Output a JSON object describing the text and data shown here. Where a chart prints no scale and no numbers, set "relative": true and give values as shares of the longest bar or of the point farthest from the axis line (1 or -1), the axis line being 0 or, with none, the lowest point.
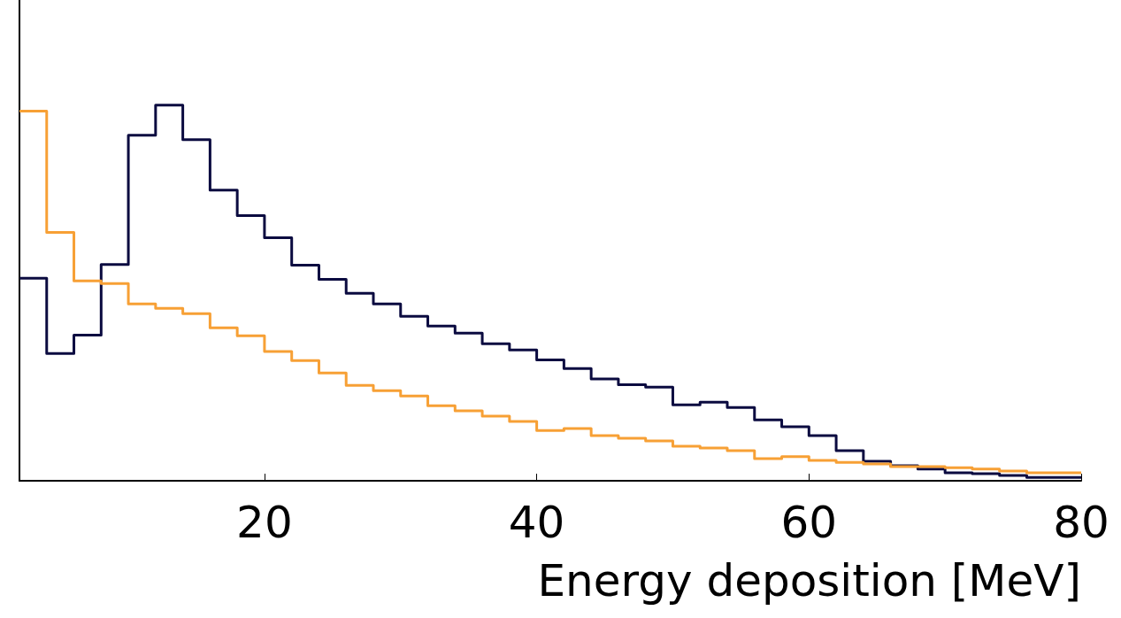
{
  "chart_data": {
    "type": "step",
    "relative": true,
    "xlabel": "Energy deposition [MeV]",
    "xlim": [
      2,
      80
    ],
    "xticks": [
      20,
      40,
      60,
      80
    ],
    "x": [
      2,
      4,
      6,
      8,
      10,
      12,
      14,
      16,
      18,
      20,
      22,
      24,
      26,
      28,
      30,
      32,
      34,
      36,
      38,
      40,
      42,
      44,
      46,
      48,
      50,
      52,
      54,
      56,
      58,
      60,
      62,
      64,
      66,
      68,
      70,
      72,
      74,
      76,
      78,
      80
    ],
    "series": [
      {
        "color": "#0b0b40",
        "values": [
          0.539,
          0.339,
          0.388,
          0.576,
          0.92,
          1.0,
          0.908,
          0.774,
          0.706,
          0.647,
          0.574,
          0.536,
          0.499,
          0.471,
          0.438,
          0.412,
          0.393,
          0.365,
          0.348,
          0.322,
          0.299,
          0.271,
          0.256,
          0.249,
          0.202,
          0.209,
          0.195,
          0.162,
          0.144,
          0.12,
          0.08,
          0.052,
          0.04,
          0.031,
          0.021,
          0.019,
          0.014,
          0.009,
          0.009,
          0.009
        ]
      },
      {
        "color": "#f7a035",
        "values": [
          0.984,
          0.661,
          0.532,
          0.525,
          0.471,
          0.459,
          0.445,
          0.407,
          0.386,
          0.344,
          0.32,
          0.287,
          0.254,
          0.24,
          0.226,
          0.2,
          0.186,
          0.172,
          0.158,
          0.134,
          0.139,
          0.12,
          0.113,
          0.106,
          0.092,
          0.087,
          0.08,
          0.059,
          0.064,
          0.054,
          0.049,
          0.045,
          0.038,
          0.038,
          0.035,
          0.031,
          0.026,
          0.021,
          0.021,
          0.021
        ]
      }
    ]
  }
}
